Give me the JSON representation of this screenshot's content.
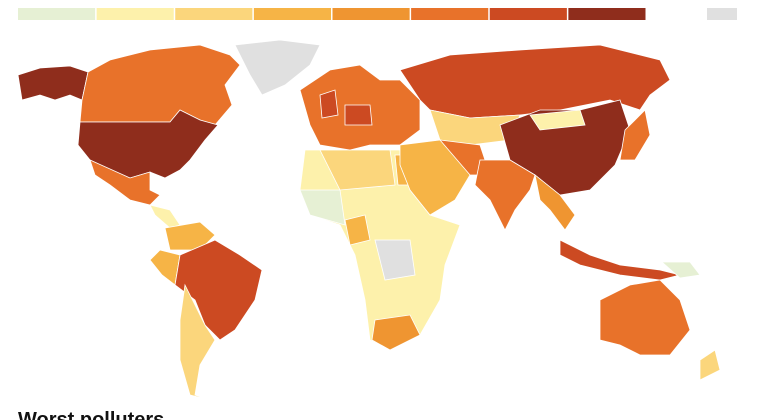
{
  "title": "Worst polluters",
  "legend": {
    "colors": [
      "#e6f0d4",
      "#fdf1ab",
      "#fbd67c",
      "#f6b446",
      "#ef9531",
      "#e8722a",
      "#cc4a22",
      "#8f2d1c"
    ],
    "no_data_color": "#e0e0e0"
  }
}
